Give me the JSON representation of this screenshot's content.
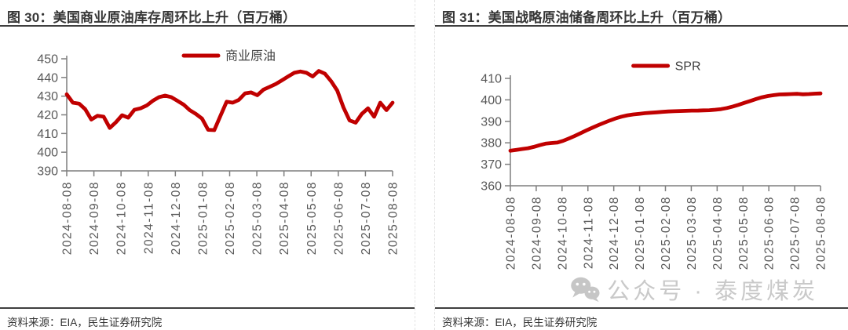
{
  "page": {
    "background": "#ffffff"
  },
  "colors": {
    "accent_red": "#c00000",
    "axis_line": "#7f7f7f",
    "axis_text": "#595959",
    "legend_text": "#404040",
    "title_text": "#363636",
    "rule_dark": "#3f3f3f",
    "watermark_gray": "#c9c9c9"
  },
  "watermark": {
    "icon": "wechat-icon",
    "text": "公众号 · 泰度煤炭"
  },
  "chart_data": [
    {
      "type": "line",
      "title": "图 30：美国商业原油库存周环比上升（百万桶）",
      "source": "资料来源：EIA，民生证券研究院",
      "legend_position": "top-center",
      "grid": false,
      "ylabel": "",
      "xlabel": "",
      "ylim": [
        390,
        450
      ],
      "ytick_step": 10,
      "ytick_labels": [
        "390",
        "400",
        "410",
        "420",
        "430",
        "440",
        "450"
      ],
      "x_tick_labels": [
        "2024-08-08",
        "2024-09-08",
        "2024-10-08",
        "2024-11-08",
        "2024-12-08",
        "2025-01-08",
        "2025-02-08",
        "2025-03-08",
        "2025-04-08",
        "2025-05-08",
        "2025-06-08",
        "2025-07-08",
        "2025-08-08"
      ],
      "series": [
        {
          "name": "商业原油",
          "color": "#c00000",
          "values": [
            431,
            426.5,
            426,
            423,
            417.5,
            419.5,
            419,
            413,
            416,
            419.8,
            418.5,
            422.7,
            423.5,
            425,
            427.5,
            429.5,
            430.3,
            429.5,
            427.5,
            425.5,
            422.5,
            420.5,
            418,
            412,
            411.8,
            419.5,
            427,
            426.5,
            428,
            431.5,
            432,
            430.5,
            433.5,
            435,
            436.5,
            438.5,
            440.5,
            442.5,
            443.2,
            442.5,
            440.5,
            443.5,
            442,
            438,
            433,
            424,
            417,
            415.8,
            420.5,
            423.5,
            419,
            426.5,
            422.5,
            426.5
          ]
        }
      ]
    },
    {
      "type": "line",
      "title": "图 31：美国战略原油储备周环比上升（百万桶）",
      "source": "资料来源：EIA，民生证券研究院",
      "legend_position": "top-center",
      "grid": false,
      "ylabel": "",
      "xlabel": "",
      "ylim": [
        360,
        410
      ],
      "ytick_step": 10,
      "ytick_labels": [
        "360",
        "370",
        "380",
        "390",
        "400",
        "410"
      ],
      "x_tick_labels": [
        "2024-08-08",
        "2024-09-08",
        "2024-10-08",
        "2024-11-08",
        "2024-12-08",
        "2025-01-08",
        "2025-02-08",
        "2025-03-08",
        "2025-04-08",
        "2025-05-08",
        "2025-06-08",
        "2025-07-08",
        "2025-08-08"
      ],
      "series": [
        {
          "name": "SPR",
          "color": "#c00000",
          "values": [
            376.3,
            376.7,
            377.1,
            377.5,
            378.1,
            378.9,
            379.6,
            379.9,
            380.1,
            380.9,
            382,
            383.2,
            384.5,
            385.8,
            387,
            388.2,
            389.3,
            390.4,
            391.4,
            392.2,
            392.8,
            393.2,
            393.5,
            393.8,
            394,
            394.2,
            394.4,
            394.6,
            394.7,
            394.8,
            394.9,
            395,
            395,
            395.1,
            395.2,
            395.4,
            395.7,
            396.2,
            396.9,
            397.7,
            398.6,
            399.5,
            400.4,
            401.2,
            401.8,
            402.2,
            402.5,
            402.6,
            402.7,
            402.8,
            402.6,
            402.7,
            402.9,
            403
          ]
        }
      ]
    }
  ]
}
